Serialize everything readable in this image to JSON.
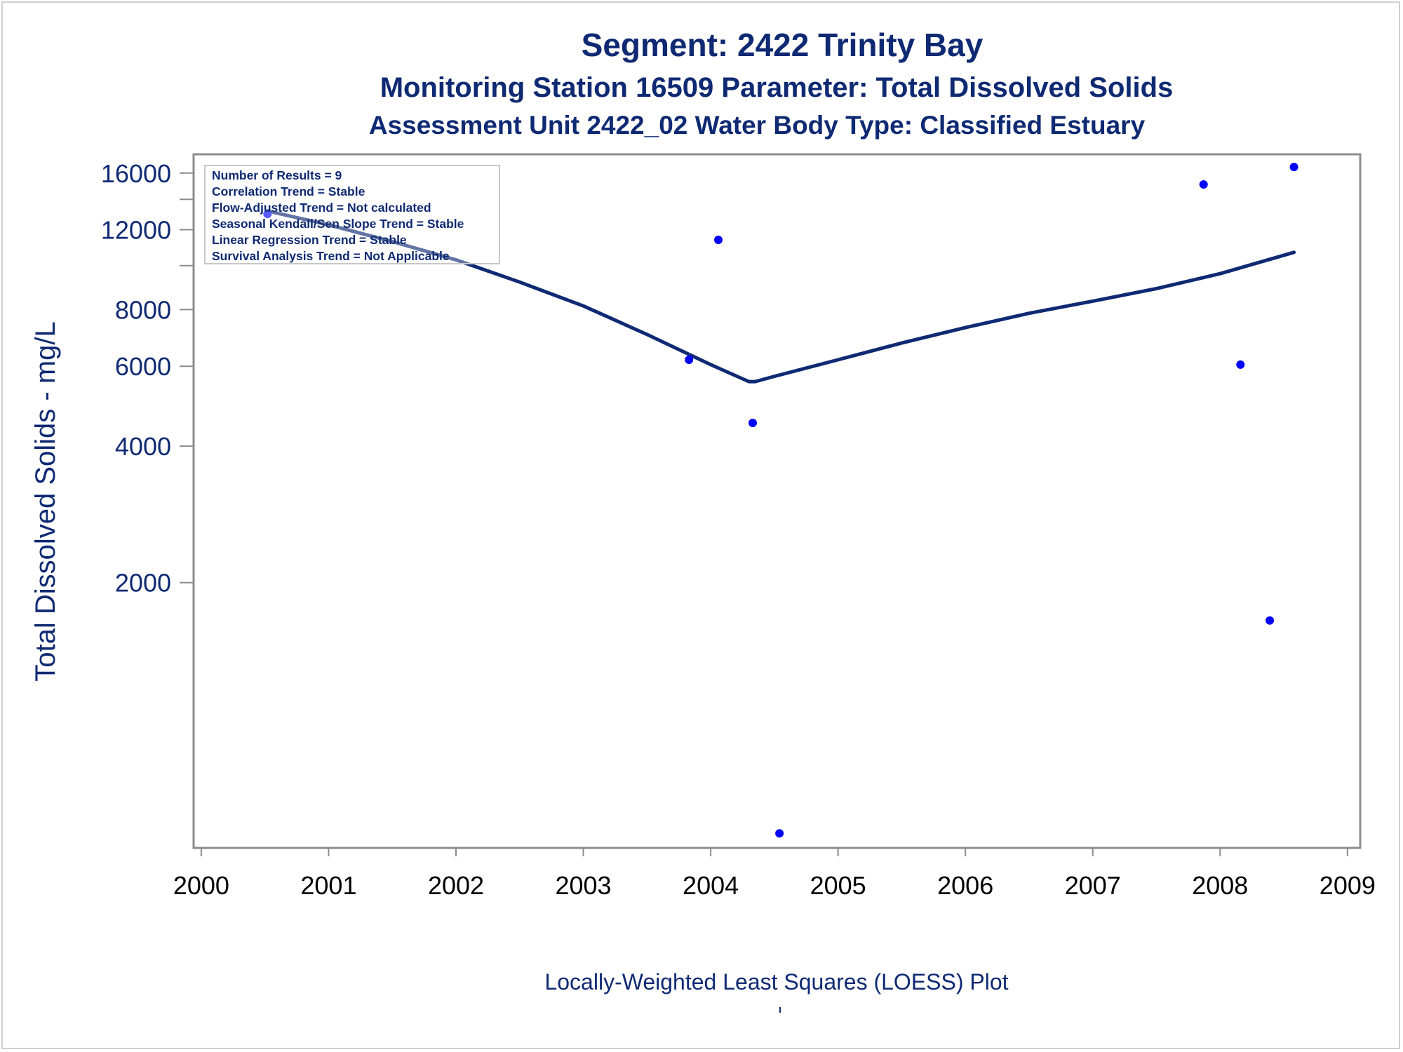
{
  "titles": {
    "line1": "Segment: 2422  Trinity Bay",
    "line2": "Monitoring Station 16509 Parameter: Total Dissolved Solids",
    "line3": "Assessment Unit 2422_02   Water Body Type: Classified Estuary"
  },
  "footnote": "Locally-Weighted Least Squares (LOESS) Plot",
  "stats_box": {
    "lines": [
      "Number of Results = 9",
      "Correlation Trend = Stable",
      "Flow-Adjusted Trend = Not calculated",
      "Seasonal Kendall/Sen Slope Trend = Stable",
      "Linear Regression Trend = Stable",
      "Survival Analysis Trend = Not Applicable"
    ]
  },
  "colors": {
    "title": "#0f2a73",
    "points": "#0000ff",
    "loess_line": "#0f2a73",
    "axis": "#8c8c8c",
    "x_tick_label": "#000000",
    "y_tick_label": "#0f2a73"
  },
  "chart_data": {
    "type": "scatter",
    "x_scale": "linear",
    "y_scale": "log",
    "xlim": [
      1999.94,
      2009.1
    ],
    "ylim": [
      520,
      17600
    ],
    "ylabel": "Total Dissolved Solids - mg/L",
    "xlabel": "",
    "x_ticks": [
      2000,
      2001,
      2002,
      2003,
      2004,
      2005,
      2006,
      2007,
      2008,
      2009
    ],
    "y_ticks_labeled": [
      2000,
      4000,
      6000,
      8000,
      12000,
      16000
    ],
    "y_ticks_unlabeled": [
      14000,
      10000
    ],
    "grid": false,
    "legend": "none",
    "series": [
      {
        "type": "scatter",
        "x": [
          2000.52,
          2003.83,
          2004.06,
          2004.33,
          2004.54,
          2007.87,
          2008.16,
          2008.39,
          2008.58
        ],
        "y": [
          13000,
          6200,
          11400,
          4500,
          560,
          15100,
          6050,
          1650,
          16500
        ]
      },
      {
        "type": "line",
        "x": [
          2000.52,
          2001.0,
          2001.5,
          2002.0,
          2002.5,
          2003.0,
          2003.5,
          2004.0,
          2004.3,
          2004.35,
          2004.5,
          2005.0,
          2005.5,
          2006.0,
          2006.5,
          2007.0,
          2007.5,
          2008.0,
          2008.58
        ],
        "y": [
          13200,
          12300,
          11300,
          10300,
          9200,
          8150,
          7050,
          6050,
          5550,
          5550,
          5700,
          6200,
          6750,
          7300,
          7850,
          8350,
          8900,
          9600,
          10700
        ]
      }
    ]
  }
}
